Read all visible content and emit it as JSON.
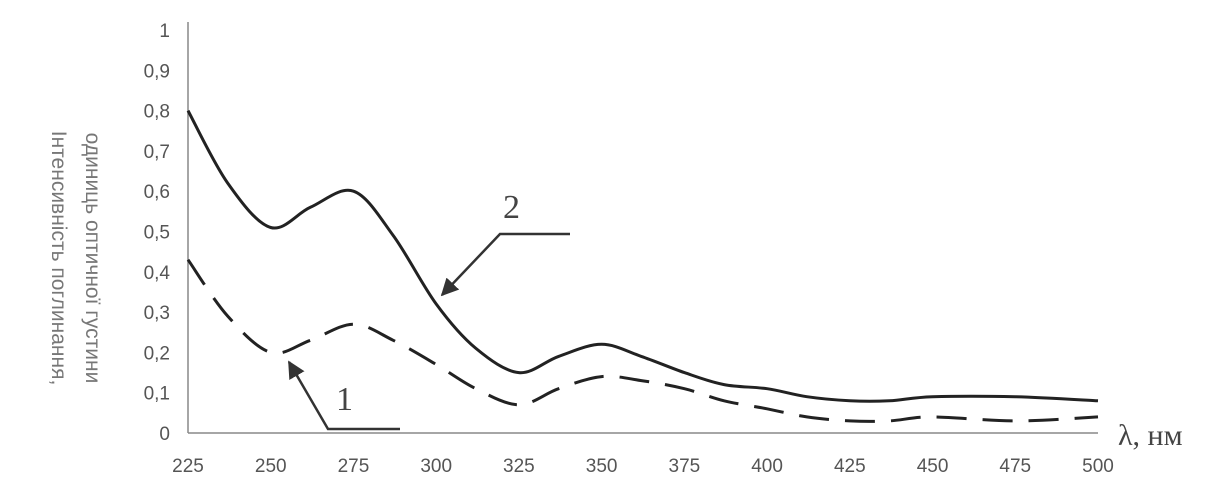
{
  "chart_data": {
    "type": "line",
    "title": "",
    "xlabel": "λ, нм",
    "ylabel": [
      "Інтенсивність поглинання,",
      "одиниць оптичної густини"
    ],
    "xlim": [
      225,
      500
    ],
    "ylim": [
      0,
      1
    ],
    "x_ticks": [
      "225",
      "250",
      "275",
      "300",
      "325",
      "350",
      "375",
      "400",
      "425",
      "450",
      "475",
      "500"
    ],
    "y_ticks": [
      "0",
      "0,1",
      "0,2",
      "0,3",
      "0,4",
      "0,5",
      "0,6",
      "0,7",
      "0,8",
      "0,9",
      "1"
    ],
    "grid": false,
    "legend": "none",
    "series": [
      {
        "label": "1",
        "style": "dashed",
        "x": [
          225,
          237,
          250,
          262,
          275,
          287,
          300,
          312,
          325,
          337,
          350,
          362,
          375,
          387,
          400,
          412,
          425,
          437,
          450,
          475,
          500
        ],
        "y": [
          0.43,
          0.29,
          0.2,
          0.23,
          0.27,
          0.23,
          0.17,
          0.11,
          0.07,
          0.11,
          0.14,
          0.13,
          0.11,
          0.08,
          0.06,
          0.04,
          0.03,
          0.03,
          0.04,
          0.03,
          0.04
        ]
      },
      {
        "label": "2",
        "style": "solid",
        "x": [
          225,
          237,
          250,
          262,
          275,
          287,
          300,
          312,
          325,
          337,
          350,
          362,
          375,
          387,
          400,
          412,
          425,
          437,
          450,
          475,
          500
        ],
        "y": [
          0.8,
          0.62,
          0.51,
          0.56,
          0.6,
          0.49,
          0.32,
          0.21,
          0.15,
          0.19,
          0.22,
          0.19,
          0.15,
          0.12,
          0.11,
          0.09,
          0.08,
          0.08,
          0.09,
          0.09,
          0.08
        ]
      }
    ],
    "annotations": [
      {
        "text": "2",
        "points_to": "series 2"
      },
      {
        "text": "1",
        "points_to": "series 1"
      }
    ]
  }
}
